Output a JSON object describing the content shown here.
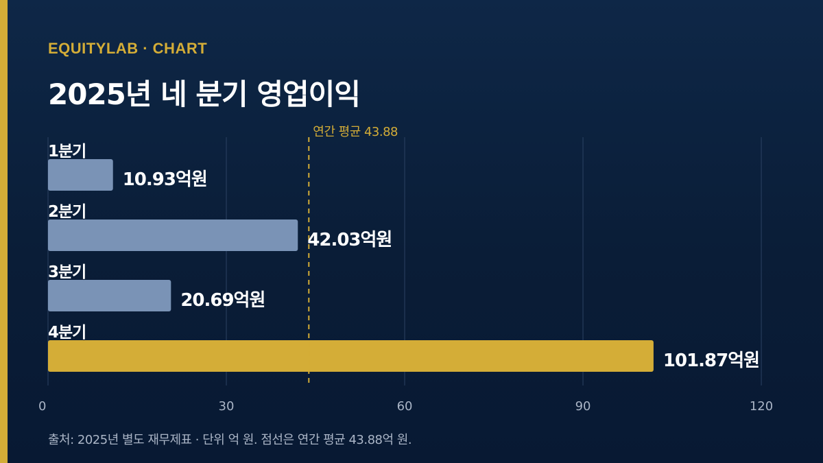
{
  "header": {
    "kicker": "EQUITYLAB · CHART",
    "title": "2025년 네 분기 영업이익"
  },
  "footer": {
    "source": "출처: 2025년 별도 재무제표 · 단위 억 원. 점선은 연간 평균 43.88억 원."
  },
  "colors": {
    "background": "#0b1e38",
    "accent": "#d4ad37",
    "bar": "#7a93b6",
    "highlight_bar": "#d4ad37",
    "grid": "#2c4263",
    "tick_text": "#aab5c6"
  },
  "chart_data": {
    "type": "bar",
    "orientation": "horizontal",
    "categories": [
      "1분기",
      "2분기",
      "3분기",
      "4분기"
    ],
    "values": [
      10.93,
      42.03,
      20.69,
      101.87
    ],
    "value_labels": [
      "10.93억원",
      "42.03억원",
      "20.69억원",
      "101.87억원"
    ],
    "highlight_index": 3,
    "xlim": [
      0,
      120
    ],
    "xticks": [
      0,
      30,
      60,
      90,
      120
    ],
    "grid": true,
    "reference_line": {
      "value": 43.88,
      "label": "연간 평균 43.88",
      "style": "dashed"
    }
  }
}
